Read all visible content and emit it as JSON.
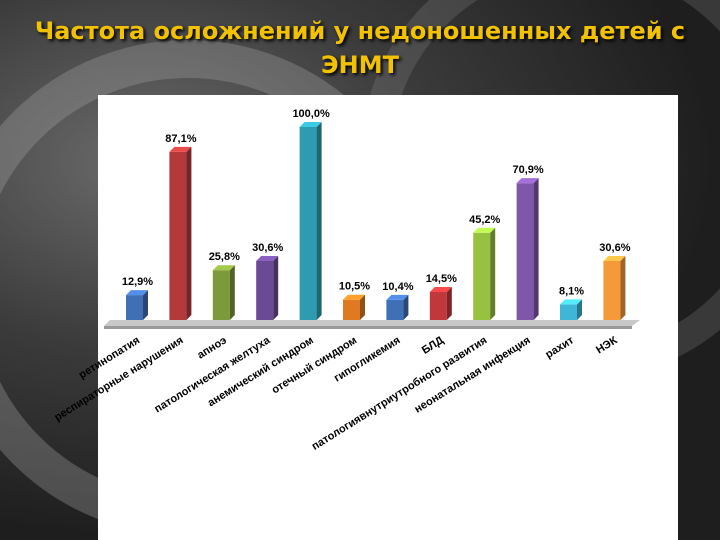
{
  "title": "Частота осложнений у недоношенных детей с ЭНМТ",
  "chart_data": {
    "type": "bar",
    "title": "Частота осложнений у недоношенных детей с ЭНМТ",
    "xlabel": "",
    "ylabel": "",
    "grid": false,
    "categories": [
      "ретинопатия",
      "респираторные нарушения",
      "апноэ",
      "патологическая желтуха",
      "анемический синдром",
      "отечный синдром",
      "гипогликемия",
      "БЛД",
      "патологиявнутриутробного развития",
      "неонатальная инфекция",
      "рахит",
      "НЭК"
    ],
    "values": [
      12.9,
      87.1,
      25.8,
      30.6,
      100.0,
      10.5,
      10.4,
      14.5,
      45.2,
      70.9,
      8.1,
      30.6
    ],
    "labels": [
      "12,9%",
      "87,1%",
      "25,8%",
      "30,6%",
      "100,0%",
      "10,5%",
      "10,4%",
      "14,5%",
      "45,2%",
      "70,9%",
      "8,1%",
      "30,6%"
    ],
    "colors": [
      "#3f6fb5",
      "#b33a3a",
      "#7d9a3a",
      "#6a4a94",
      "#2e9bb0",
      "#e07a22",
      "#3f6fb5",
      "#c0383a",
      "#96c23f",
      "#7e56aa",
      "#3fb6d6",
      "#f59a3a"
    ],
    "ylim": [
      0,
      100
    ]
  }
}
